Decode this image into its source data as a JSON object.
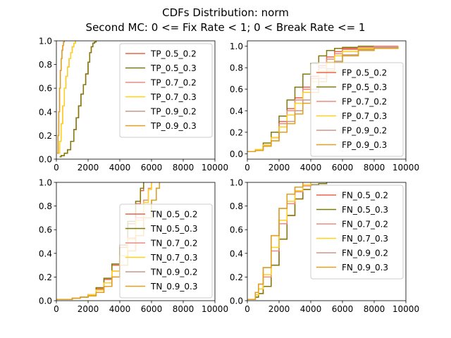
{
  "figure": {
    "title_line1": "CDFs Distribution: norm",
    "title_line2": "Second MC: 0 <= Fix Rate < 1; 0 < Break Rate <= 1"
  },
  "colors": {
    "0.5_0.2": "#e8644a",
    "0.5_0.3": "#7f7a0a",
    "0.7_0.2": "#f08a80",
    "0.7_0.3": "#ffd21a",
    "0.9_0.2": "#c49a8a",
    "0.9_0.3": "#e0a020"
  },
  "chart_data": [
    {
      "id": "TP",
      "type": "line",
      "xlim": [
        0,
        10000
      ],
      "ylim": [
        0,
        1.0
      ],
      "xticks": [
        "0",
        "2000",
        "4000",
        "6000",
        "8000",
        "10000"
      ],
      "yticks": [
        "0.0",
        "0.2",
        "0.4",
        "0.6",
        "0.8",
        "1.0"
      ],
      "legend_position": "upper-right",
      "series": [
        {
          "name": "TP_0.5_0.2",
          "key": "0.5_0.2",
          "x": [
            200,
            300,
            500,
            700,
            900,
            1100,
            1250,
            1400,
            1550,
            1700,
            1850,
            2000,
            2100,
            2200,
            2300,
            2400,
            2500
          ],
          "y": [
            0.02,
            0.03,
            0.05,
            0.08,
            0.15,
            0.25,
            0.35,
            0.45,
            0.55,
            0.63,
            0.72,
            0.82,
            0.9,
            0.95,
            0.98,
            0.99,
            1.0
          ]
        },
        {
          "name": "TP_0.5_0.3",
          "key": "0.5_0.3",
          "x": [
            200,
            300,
            500,
            700,
            900,
            1100,
            1250,
            1400,
            1550,
            1700,
            1850,
            2000,
            2100,
            2200,
            2300,
            2400,
            2500
          ],
          "y": [
            0.02,
            0.03,
            0.05,
            0.08,
            0.15,
            0.25,
            0.35,
            0.45,
            0.55,
            0.63,
            0.72,
            0.82,
            0.9,
            0.95,
            0.98,
            0.99,
            1.0
          ]
        },
        {
          "name": "TP_0.7_0.2",
          "key": "0.7_0.2",
          "x": [
            100,
            200,
            300,
            400,
            500,
            600,
            700,
            800,
            900,
            1000,
            1100,
            1200
          ],
          "y": [
            0.05,
            0.15,
            0.3,
            0.45,
            0.6,
            0.7,
            0.78,
            0.85,
            0.9,
            0.95,
            0.98,
            1.0
          ]
        },
        {
          "name": "TP_0.7_0.3",
          "key": "0.7_0.3",
          "x": [
            100,
            200,
            300,
            400,
            500,
            600,
            700,
            800,
            900,
            1000,
            1100,
            1200
          ],
          "y": [
            0.05,
            0.15,
            0.3,
            0.45,
            0.6,
            0.7,
            0.78,
            0.85,
            0.9,
            0.95,
            0.98,
            1.0
          ]
        },
        {
          "name": "TP_0.9_0.2",
          "key": "0.9_0.2",
          "x": [
            50,
            100,
            150,
            200,
            250,
            300,
            350,
            400,
            450,
            500
          ],
          "y": [
            0.05,
            0.2,
            0.4,
            0.6,
            0.75,
            0.85,
            0.92,
            0.96,
            0.99,
            1.0
          ]
        },
        {
          "name": "TP_0.9_0.3",
          "key": "0.9_0.3",
          "x": [
            50,
            100,
            150,
            200,
            250,
            300,
            350,
            400,
            450,
            500
          ],
          "y": [
            0.05,
            0.2,
            0.4,
            0.6,
            0.75,
            0.85,
            0.92,
            0.96,
            0.99,
            1.0
          ]
        }
      ]
    },
    {
      "id": "FP",
      "type": "line",
      "xlim": [
        0,
        10000
      ],
      "ylim": [
        0,
        1.0
      ],
      "xticks": [
        "0",
        "2000",
        "4000",
        "6000",
        "8000",
        "10000"
      ],
      "yticks": [
        "0.0",
        "0.2",
        "0.4",
        "0.6",
        "0.8",
        "1.0"
      ],
      "legend_position": "lower-right",
      "series": [
        {
          "name": "FP_0.5_0.2",
          "key": "0.5_0.2",
          "x": [
            0,
            500,
            1000,
            1500,
            2000,
            2500,
            3000,
            3500,
            4000,
            4500,
            5000,
            5500,
            6000,
            7000,
            8000,
            9500
          ],
          "y": [
            0.02,
            0.04,
            0.08,
            0.15,
            0.3,
            0.42,
            0.52,
            0.62,
            0.72,
            0.82,
            0.9,
            0.95,
            0.98,
            0.99,
            1.0,
            1.0
          ]
        },
        {
          "name": "FP_0.5_0.3",
          "key": "0.5_0.3",
          "x": [
            0,
            500,
            1000,
            1500,
            2000,
            2500,
            3000,
            3500,
            4000,
            4500,
            5000,
            5500,
            6000,
            7000,
            8000
          ],
          "y": [
            0.02,
            0.04,
            0.1,
            0.2,
            0.35,
            0.5,
            0.62,
            0.74,
            0.84,
            0.91,
            0.96,
            0.98,
            0.99,
            1.0,
            1.0
          ]
        },
        {
          "name": "FP_0.7_0.2",
          "key": "0.7_0.2",
          "x": [
            0,
            500,
            1000,
            1500,
            2000,
            2500,
            3000,
            3500,
            4000,
            4500,
            5000,
            5500,
            6000,
            7000,
            8000,
            9500
          ],
          "y": [
            0.02,
            0.04,
            0.08,
            0.15,
            0.28,
            0.4,
            0.5,
            0.6,
            0.7,
            0.8,
            0.88,
            0.93,
            0.97,
            0.99,
            1.0,
            1.0
          ]
        },
        {
          "name": "FP_0.7_0.3",
          "key": "0.7_0.3",
          "x": [
            0,
            500,
            1000,
            1500,
            2000,
            2500,
            3000,
            3500,
            4000,
            4500,
            5000,
            5500,
            6000,
            7000,
            8000,
            9500
          ],
          "y": [
            0.02,
            0.04,
            0.08,
            0.15,
            0.25,
            0.36,
            0.47,
            0.57,
            0.67,
            0.77,
            0.85,
            0.91,
            0.95,
            0.98,
            0.99,
            1.0
          ]
        },
        {
          "name": "FP_0.9_0.2",
          "key": "0.9_0.2",
          "x": [
            0,
            500,
            1000,
            1500,
            2000,
            2500,
            3000,
            3500,
            4000,
            4500,
            5000,
            5500,
            6000,
            7000,
            8000,
            9500
          ],
          "y": [
            0.02,
            0.03,
            0.07,
            0.12,
            0.2,
            0.3,
            0.4,
            0.5,
            0.6,
            0.7,
            0.79,
            0.86,
            0.92,
            0.97,
            0.99,
            1.0
          ]
        },
        {
          "name": "FP_0.9_0.3",
          "key": "0.9_0.3",
          "x": [
            0,
            500,
            1000,
            1500,
            2000,
            2500,
            3000,
            3500,
            4000,
            4500,
            5000,
            5500,
            6000,
            7000,
            8000,
            9500
          ],
          "y": [
            0.02,
            0.03,
            0.07,
            0.12,
            0.2,
            0.28,
            0.37,
            0.47,
            0.57,
            0.67,
            0.77,
            0.85,
            0.91,
            0.96,
            0.98,
            1.0
          ]
        }
      ]
    },
    {
      "id": "TN",
      "type": "line",
      "xlim": [
        0,
        10000
      ],
      "ylim": [
        0,
        1.0
      ],
      "xticks": [
        "0",
        "2000",
        "4000",
        "6000",
        "8000",
        "10000"
      ],
      "yticks": [
        "0.0",
        "0.2",
        "0.4",
        "0.6",
        "0.8",
        "1.0"
      ],
      "legend_position": "lower-right",
      "series": [
        {
          "name": "TN_0.5_0.2",
          "key": "0.5_0.2",
          "x": [
            0,
            1000,
            1500,
            2000,
            2500,
            3000,
            3500,
            4000,
            4500,
            5000,
            5300,
            5500
          ],
          "y": [
            0.01,
            0.02,
            0.03,
            0.05,
            0.1,
            0.18,
            0.3,
            0.45,
            0.65,
            0.82,
            0.93,
            1.0
          ]
        },
        {
          "name": "TN_0.5_0.3",
          "key": "0.5_0.3",
          "x": [
            0,
            1000,
            1500,
            2000,
            2500,
            3000,
            3500,
            4000,
            4500,
            5000,
            5300,
            5500
          ],
          "y": [
            0.01,
            0.02,
            0.03,
            0.05,
            0.11,
            0.19,
            0.31,
            0.47,
            0.67,
            0.84,
            0.95,
            1.0
          ]
        },
        {
          "name": "TN_0.7_0.2",
          "key": "0.7_0.2",
          "x": [
            0,
            1000,
            1500,
            2000,
            2500,
            3000,
            3500,
            4000,
            4500,
            5000,
            5500,
            5800,
            6000
          ],
          "y": [
            0.01,
            0.02,
            0.03,
            0.05,
            0.09,
            0.15,
            0.25,
            0.38,
            0.53,
            0.7,
            0.85,
            0.95,
            1.0
          ]
        },
        {
          "name": "TN_0.7_0.3",
          "key": "0.7_0.3",
          "x": [
            0,
            1000,
            1500,
            2000,
            2500,
            3000,
            3500,
            4000,
            4500,
            5000,
            5500,
            5800,
            6000
          ],
          "y": [
            0.01,
            0.02,
            0.03,
            0.05,
            0.09,
            0.15,
            0.25,
            0.38,
            0.52,
            0.68,
            0.83,
            0.94,
            1.0
          ]
        },
        {
          "name": "TN_0.9_0.2",
          "key": "0.9_0.2",
          "x": [
            0,
            1000,
            1500,
            2000,
            2500,
            3000,
            3500,
            4000,
            4500,
            5000,
            5500,
            6000,
            6300,
            6500
          ],
          "y": [
            0.01,
            0.02,
            0.03,
            0.04,
            0.07,
            0.12,
            0.2,
            0.3,
            0.42,
            0.55,
            0.7,
            0.85,
            0.95,
            1.0
          ]
        },
        {
          "name": "TN_0.9_0.3",
          "key": "0.9_0.3",
          "x": [
            0,
            1000,
            1500,
            2000,
            2500,
            3000,
            3500,
            4000,
            4500,
            5000,
            5500,
            6000,
            6300,
            6500
          ],
          "y": [
            0.01,
            0.02,
            0.03,
            0.04,
            0.07,
            0.12,
            0.2,
            0.3,
            0.42,
            0.55,
            0.7,
            0.85,
            0.95,
            1.0
          ]
        }
      ]
    },
    {
      "id": "FN",
      "type": "line",
      "xlim": [
        0,
        10000
      ],
      "ylim": [
        0,
        1.0
      ],
      "xticks": [
        "0",
        "2000",
        "4000",
        "6000",
        "8000",
        "10000"
      ],
      "yticks": [
        "0.0",
        "0.2",
        "0.4",
        "0.6",
        "0.8",
        "1.0"
      ],
      "legend_position": "upper-right",
      "series": [
        {
          "name": "FN_0.5_0.2",
          "key": "0.5_0.2",
          "x": [
            0,
            500,
            700,
            1000,
            1500,
            2000,
            2500,
            3000,
            3500,
            4000,
            4500,
            5000
          ],
          "y": [
            0.01,
            0.03,
            0.06,
            0.12,
            0.3,
            0.52,
            0.72,
            0.86,
            0.94,
            0.98,
            0.99,
            1.0
          ]
        },
        {
          "name": "FN_0.5_0.3",
          "key": "0.5_0.3",
          "x": [
            0,
            500,
            700,
            1000,
            1500,
            2000,
            2500,
            3000,
            3500,
            4000,
            4500,
            5000
          ],
          "y": [
            0.01,
            0.03,
            0.06,
            0.12,
            0.3,
            0.52,
            0.72,
            0.86,
            0.94,
            0.98,
            0.99,
            1.0
          ]
        },
        {
          "name": "FN_0.7_0.2",
          "key": "0.7_0.2",
          "x": [
            0,
            500,
            700,
            1000,
            1500,
            2000,
            2500,
            3000,
            3500,
            4000
          ],
          "y": [
            0.01,
            0.05,
            0.1,
            0.2,
            0.42,
            0.65,
            0.82,
            0.92,
            0.97,
            1.0
          ]
        },
        {
          "name": "FN_0.7_0.3",
          "key": "0.7_0.3",
          "x": [
            0,
            500,
            700,
            1000,
            1500,
            2000,
            2500,
            3000,
            3500,
            4000
          ],
          "y": [
            0.01,
            0.05,
            0.1,
            0.22,
            0.45,
            0.68,
            0.84,
            0.93,
            0.98,
            1.0
          ]
        },
        {
          "name": "FN_0.9_0.2",
          "key": "0.9_0.2",
          "x": [
            0,
            500,
            700,
            1000,
            1500,
            2000,
            2500,
            3000,
            3500
          ],
          "y": [
            0.01,
            0.07,
            0.14,
            0.28,
            0.55,
            0.78,
            0.9,
            0.96,
            1.0
          ]
        },
        {
          "name": "FN_0.9_0.3",
          "key": "0.9_0.3",
          "x": [
            0,
            500,
            700,
            1000,
            1500,
            2000,
            2500,
            3000,
            3500
          ],
          "y": [
            0.01,
            0.07,
            0.14,
            0.28,
            0.55,
            0.78,
            0.9,
            0.96,
            1.0
          ]
        }
      ]
    }
  ]
}
